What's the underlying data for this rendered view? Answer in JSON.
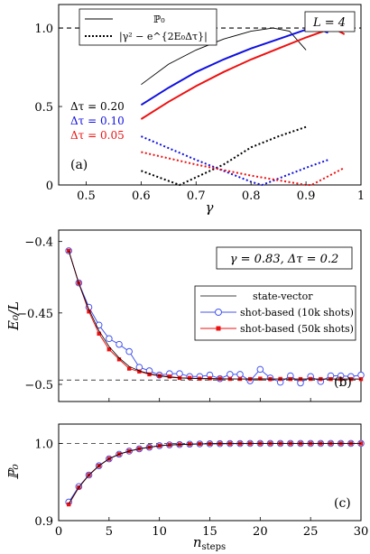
{
  "chart_data": [
    {
      "panel": "(a)",
      "type": "line",
      "xlabel": "γ",
      "ylabel": "",
      "xlim": [
        0.45,
        1.0
      ],
      "ylim": [
        0,
        1.15
      ],
      "xticks": [
        "0.5",
        "0.6",
        "0.7",
        "0.8",
        "0.9",
        "1"
      ],
      "xtick_values": [
        0.5,
        0.6,
        0.7,
        0.8,
        0.9,
        1.0
      ],
      "yticks": [
        "0",
        "0.5",
        "1.0"
      ],
      "ytick_values": [
        0,
        0.5,
        1.0
      ],
      "box_label": "L = 4",
      "legend": [
        {
          "label": "ℙ₀",
          "style": "solid"
        },
        {
          "label": "|γ² − e^{2E₀Δτ}|",
          "style": "dotted"
        }
      ],
      "reference_line": 1.0,
      "series": [
        {
          "name": "Δτ = 0.20",
          "color": "#000000",
          "curve": "solid",
          "points": [
            [
              0.6,
              0.64
            ],
            [
              0.65,
              0.77
            ],
            [
              0.7,
              0.86
            ],
            [
              0.75,
              0.93
            ],
            [
              0.8,
              0.98
            ],
            [
              0.84,
              1.0
            ],
            [
              0.87,
              0.98
            ],
            [
              0.9,
              0.86
            ]
          ]
        },
        {
          "name": "Δτ = 0.20 dotted",
          "color": "#000000",
          "curve": "dotted",
          "points": [
            [
              0.6,
              0.09
            ],
            [
              0.67,
              0.0
            ],
            [
              0.75,
              0.13
            ],
            [
              0.8,
              0.24
            ],
            [
              0.85,
              0.31
            ],
            [
              0.9,
              0.37
            ]
          ]
        },
        {
          "name": "Δτ = 0.10",
          "color": "#1010e0",
          "curve": "solid",
          "points": [
            [
              0.6,
              0.51
            ],
            [
              0.65,
              0.62
            ],
            [
              0.7,
              0.72
            ],
            [
              0.75,
              0.8
            ],
            [
              0.8,
              0.87
            ],
            [
              0.85,
              0.93
            ],
            [
              0.9,
              0.99
            ],
            [
              0.92,
              1.0
            ],
            [
              0.94,
              0.97
            ]
          ]
        },
        {
          "name": "Δτ = 0.10 dotted",
          "color": "#1010e0",
          "curve": "dotted",
          "points": [
            [
              0.6,
              0.31
            ],
            [
              0.7,
              0.16
            ],
            [
              0.8,
              0.02
            ],
            [
              0.82,
              0.0
            ],
            [
              0.9,
              0.11
            ],
            [
              0.94,
              0.16
            ]
          ]
        },
        {
          "name": "Δτ = 0.05",
          "color": "#ee1010",
          "curve": "solid",
          "points": [
            [
              0.6,
              0.42
            ],
            [
              0.65,
              0.53
            ],
            [
              0.7,
              0.63
            ],
            [
              0.75,
              0.72
            ],
            [
              0.8,
              0.8
            ],
            [
              0.85,
              0.87
            ],
            [
              0.9,
              0.94
            ],
            [
              0.94,
              0.99
            ],
            [
              0.95,
              1.0
            ],
            [
              0.97,
              0.96
            ]
          ]
        },
        {
          "name": "Δτ = 0.05 dotted",
          "color": "#ee1010",
          "curve": "dotted",
          "points": [
            [
              0.6,
              0.21
            ],
            [
              0.7,
              0.13
            ],
            [
              0.8,
              0.06
            ],
            [
              0.9,
              0.0
            ],
            [
              0.91,
              0.0
            ],
            [
              0.97,
              0.11
            ]
          ]
        }
      ],
      "annotations": [
        {
          "text": "Δτ = 0.20",
          "color": "#000000"
        },
        {
          "text": "Δτ = 0.10",
          "color": "#1010e0"
        },
        {
          "text": "Δτ = 0.05",
          "color": "#ee1010"
        }
      ]
    },
    {
      "panel": "(b)",
      "type": "line",
      "xlabel": "",
      "ylabel": "E₀/L",
      "xlim": [
        0,
        30
      ],
      "ylim": [
        -0.512,
        -0.392
      ],
      "yticks": [
        "−0.4",
        "−0.45",
        "−0.5"
      ],
      "ytick_values": [
        -0.4,
        -0.45,
        -0.5
      ],
      "box_label": "γ = 0.83, Δτ = 0.2",
      "reference_line": -0.497,
      "legend": [
        {
          "label": "state-vector",
          "color": "#000000",
          "marker": "none"
        },
        {
          "label": "shot-based (10k shots)",
          "color": "#4455ee",
          "marker": "circle"
        },
        {
          "label": "shot-based (50k shots)",
          "color": "#ee1010",
          "marker": "square"
        }
      ],
      "x": [
        1,
        2,
        3,
        4,
        5,
        6,
        7,
        8,
        9,
        10,
        11,
        12,
        13,
        14,
        15,
        16,
        17,
        18,
        19,
        20,
        21,
        22,
        23,
        24,
        25,
        26,
        27,
        28,
        29,
        30
      ],
      "series": [
        {
          "name": "state-vector",
          "values": [
            -0.4065,
            -0.4295,
            -0.4475,
            -0.4625,
            -0.4735,
            -0.4815,
            -0.4875,
            -0.4905,
            -0.4925,
            -0.494,
            -0.495,
            -0.4955,
            -0.4958,
            -0.496,
            -0.4961,
            -0.4962,
            -0.4962,
            -0.4963,
            -0.4963,
            -0.4963,
            -0.4963,
            -0.4963,
            -0.4963,
            -0.4963,
            -0.4963,
            -0.4963,
            -0.4963,
            -0.4963,
            -0.4963,
            -0.4963
          ]
        },
        {
          "name": "shot-based (10k shots)",
          "values": [
            -0.4065,
            -0.429,
            -0.446,
            -0.4585,
            -0.468,
            -0.472,
            -0.477,
            -0.488,
            -0.4905,
            -0.4935,
            -0.4925,
            -0.4925,
            -0.4945,
            -0.4945,
            -0.4935,
            -0.496,
            -0.493,
            -0.493,
            -0.4975,
            -0.4895,
            -0.4955,
            -0.4985,
            -0.494,
            -0.499,
            -0.4945,
            -0.498,
            -0.494,
            -0.494,
            -0.4945,
            -0.4935
          ]
        },
        {
          "name": "shot-based (50k shots)",
          "values": [
            -0.4065,
            -0.429,
            -0.449,
            -0.4645,
            -0.4755,
            -0.4825,
            -0.489,
            -0.491,
            -0.493,
            -0.494,
            -0.4945,
            -0.4955,
            -0.4955,
            -0.496,
            -0.4958,
            -0.496,
            -0.4962,
            -0.4962,
            -0.4963,
            -0.496,
            -0.4963,
            -0.4962,
            -0.4963,
            -0.4963,
            -0.4962,
            -0.4963,
            -0.4963,
            -0.4963,
            -0.4963,
            -0.4963
          ]
        }
      ]
    },
    {
      "panel": "(c)",
      "type": "line",
      "xlabel": "n_steps",
      "ylabel": "ℙ₀",
      "xlim": [
        0,
        30
      ],
      "ylim": [
        0.9,
        1.025
      ],
      "xticks": [
        "0",
        "5",
        "10",
        "15",
        "20",
        "25",
        "30"
      ],
      "xtick_values": [
        0,
        5,
        10,
        15,
        20,
        25,
        30
      ],
      "yticks": [
        "0.9",
        "1.0"
      ],
      "ytick_values": [
        0.9,
        1.0
      ],
      "reference_line": 1.0,
      "x": [
        1,
        2,
        3,
        4,
        5,
        6,
        7,
        8,
        9,
        10,
        11,
        12,
        13,
        14,
        15,
        16,
        17,
        18,
        19,
        20,
        21,
        22,
        23,
        24,
        25,
        26,
        27,
        28,
        29,
        30
      ],
      "series": [
        {
          "name": "state-vector",
          "values": [
            0.922,
            0.943,
            0.959,
            0.971,
            0.98,
            0.986,
            0.99,
            0.993,
            0.995,
            0.997,
            0.998,
            0.9985,
            0.999,
            0.9993,
            0.9995,
            0.9997,
            0.9998,
            0.9998,
            0.9999,
            0.9999,
            0.9999,
            0.9999,
            0.9999,
            0.9999,
            0.9999,
            0.9999,
            0.9999,
            0.9999,
            0.9999,
            0.9999
          ]
        },
        {
          "name": "shot-based (10k shots)",
          "values": [
            0.924,
            0.944,
            0.959,
            0.971,
            0.98,
            0.986,
            0.99,
            0.993,
            0.995,
            0.997,
            0.998,
            0.9985,
            0.999,
            0.9993,
            0.9995,
            0.9997,
            0.9998,
            0.9998,
            0.9999,
            0.9999,
            0.9999,
            0.9999,
            0.9999,
            0.9999,
            0.9999,
            0.9999,
            0.9999,
            0.9999,
            0.9999,
            0.9999
          ]
        },
        {
          "name": "shot-based (50k shots)",
          "values": [
            0.921,
            0.943,
            0.959,
            0.971,
            0.98,
            0.986,
            0.99,
            0.993,
            0.995,
            0.997,
            0.998,
            0.9985,
            0.999,
            0.9993,
            0.9995,
            0.9997,
            0.9998,
            0.9998,
            0.9999,
            0.9999,
            0.9999,
            0.9999,
            0.9999,
            0.9999,
            0.9999,
            0.9999,
            0.9999,
            0.9999,
            0.9999,
            0.9999
          ]
        }
      ]
    }
  ]
}
